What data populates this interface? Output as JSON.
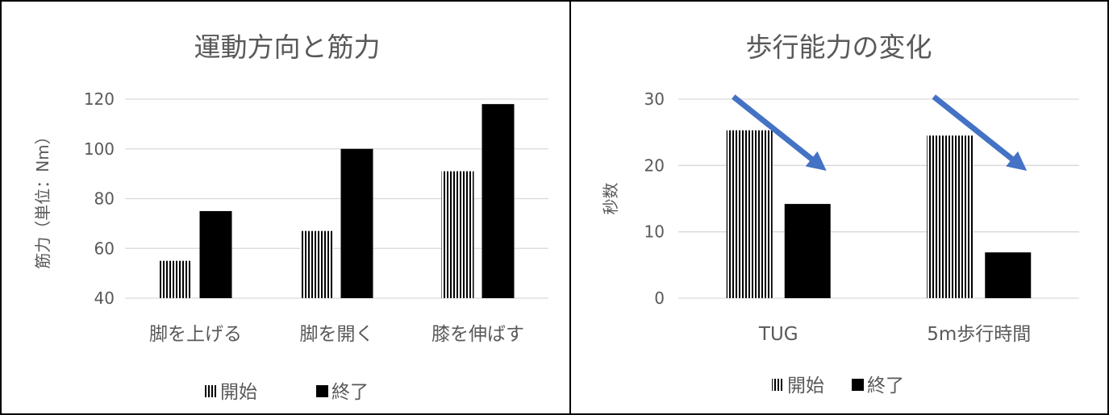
{
  "chart_data": [
    {
      "type": "bar",
      "title": "運動方向と筋力",
      "xlabel": "",
      "ylabel": "筋力（単位：Nm）",
      "ylim": [
        40,
        120
      ],
      "yticks": [
        40,
        60,
        80,
        100,
        120
      ],
      "grid": true,
      "legend_position": "bottom",
      "categories": [
        "脚を上げる",
        "脚を開く",
        "膝を伸ばす"
      ],
      "series": [
        {
          "name": "開始",
          "values": [
            55,
            67,
            91
          ],
          "pattern": "vertical-stripes"
        },
        {
          "name": "終了",
          "values": [
            75,
            100,
            118
          ],
          "pattern": "solid"
        }
      ],
      "annotations": []
    },
    {
      "type": "bar",
      "title": "歩行能力の変化",
      "xlabel": "",
      "ylabel": "秒数",
      "ylim": [
        0,
        30
      ],
      "yticks": [
        0,
        10,
        20,
        30
      ],
      "grid": true,
      "legend_position": "bottom",
      "categories": [
        "TUG",
        "5m歩行時間"
      ],
      "series": [
        {
          "name": "開始",
          "values": [
            25.3,
            24.5
          ],
          "pattern": "vertical-stripes"
        },
        {
          "name": "終了",
          "values": [
            14.2,
            6.9
          ],
          "pattern": "solid"
        }
      ],
      "annotations": [
        "decrease-arrow",
        "decrease-arrow"
      ]
    }
  ],
  "colors": {
    "bar": "#000000",
    "stripe_bg": "#ffffff",
    "grid": "#d9d9d9",
    "text": "#595959",
    "arrow": "#4472c4"
  }
}
